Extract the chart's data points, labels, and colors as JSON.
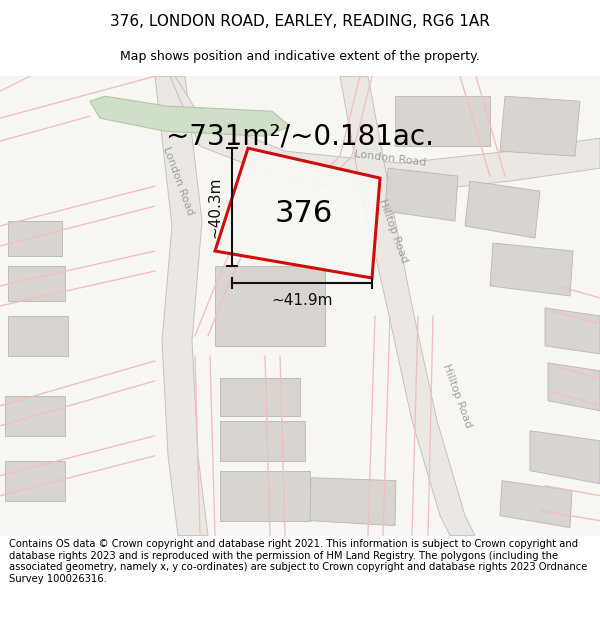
{
  "title_line1": "376, LONDON ROAD, EARLEY, READING, RG6 1AR",
  "title_line2": "Map shows position and indicative extent of the property.",
  "area_text": "~731m²/~0.181ac.",
  "label_376": "376",
  "dim_vertical": "~40.3m",
  "dim_horizontal": "~41.9m",
  "footer_text": "Contains OS data © Crown copyright and database right 2021. This information is subject to Crown copyright and database rights 2023 and is reproduced with the permission of HM Land Registry. The polygons (including the associated geometry, namely x, y co-ordinates) are subject to Crown copyright and database rights 2023 Ordnance Survey 100026316.",
  "map_bg": "#f2efea",
  "road_fill": "#e8e4df",
  "road_stroke": "#c8c5c0",
  "building_fill": "#d8d4cf",
  "building_stroke": "#bab6b1",
  "green_fill": "#cfdfc8",
  "green_stroke": "#b0c8a8",
  "plot_stroke": "#cc0000",
  "minor_road_color": "#f0c0c0",
  "road_label_color": "#a0a0a0",
  "dim_line_color": "#111111",
  "title_fontsize": 11,
  "subtitle_fontsize": 9,
  "area_fontsize": 20,
  "label_fontsize": 22,
  "dim_fontsize": 11,
  "road_label_fontsize": 8,
  "footer_fontsize": 7.2
}
